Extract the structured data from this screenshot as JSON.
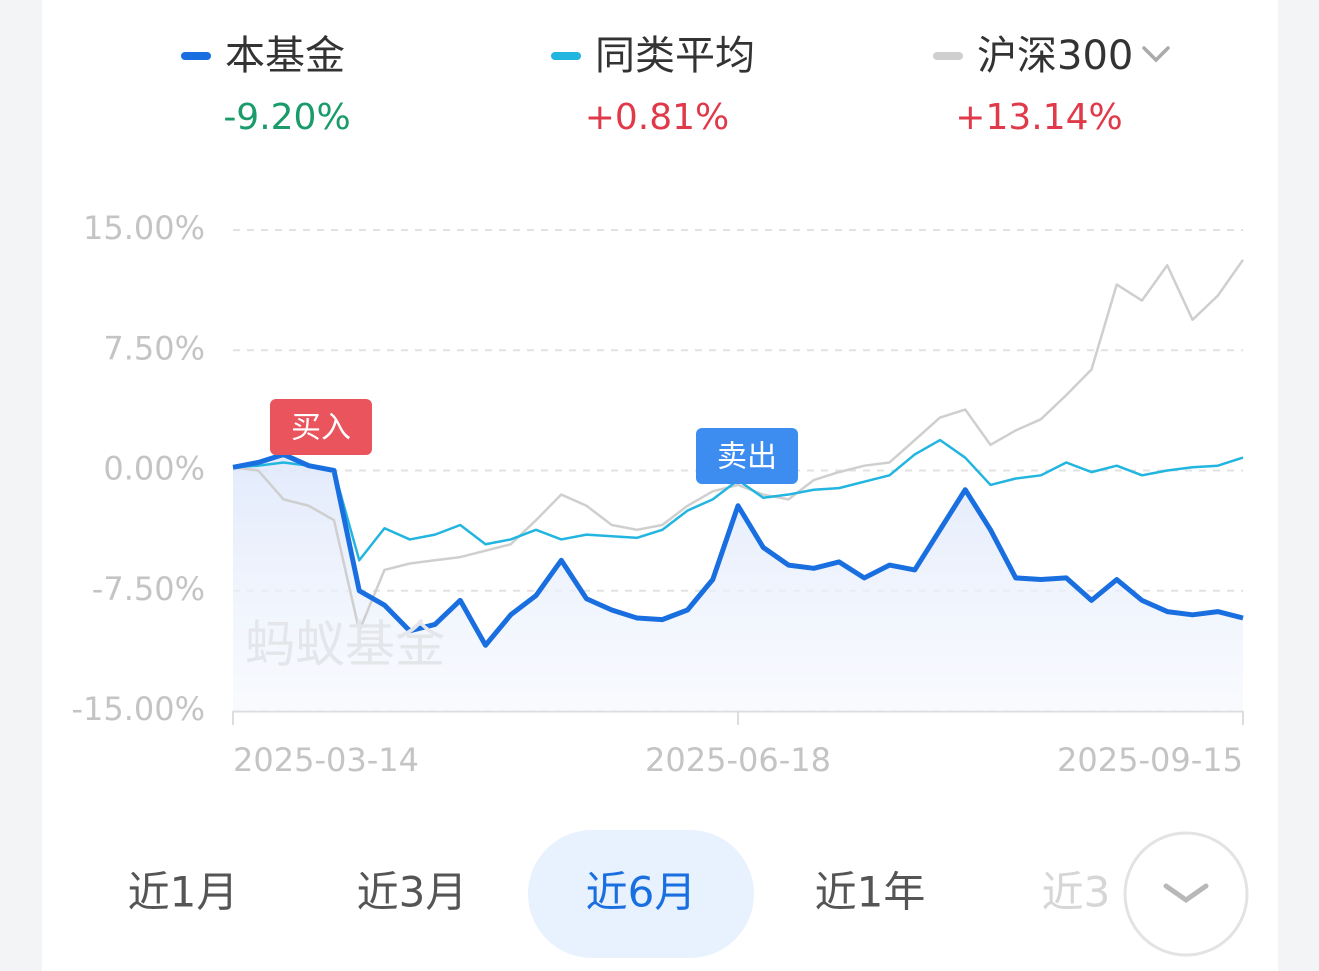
{
  "chart_data": {
    "type": "line",
    "categories": [
      "2025-03-14",
      null,
      null,
      null,
      null,
      null,
      null,
      null,
      null,
      null,
      null,
      null,
      null,
      null,
      null,
      null,
      null,
      null,
      null,
      null,
      "2025-06-18",
      null,
      null,
      null,
      null,
      null,
      null,
      null,
      null,
      null,
      null,
      null,
      null,
      null,
      null,
      null,
      null,
      null,
      null,
      null,
      "2025-09-15"
    ],
    "series": [
      {
        "name": "本基金",
        "change": "-9.20%",
        "color": "#1a6fe0",
        "values": [
          0.2,
          0.5,
          1.0,
          0.3,
          0,
          -7.5,
          -8.4,
          -10.0,
          -9.6,
          -8.1,
          -10.9,
          -9.0,
          -7.8,
          -5.6,
          -8.0,
          -8.7,
          -9.2,
          -9.3,
          -8.7,
          -6.8,
          -2.2,
          -4.8,
          -5.9,
          -6.1,
          -5.7,
          -6.7,
          -5.9,
          -6.2,
          -3.7,
          -1.2,
          -3.7,
          -6.7,
          -6.8,
          -6.7,
          -8.1,
          -6.8,
          -8.1,
          -8.8,
          -9.0,
          -8.8,
          -9.2
        ]
      },
      {
        "name": "同类平均",
        "change": "+0.81%",
        "color": "#22b5e0",
        "values": [
          0.2,
          0.3,
          0.5,
          0.3,
          0,
          -5.6,
          -3.6,
          -4.3,
          -4.0,
          -3.4,
          -4.6,
          -4.3,
          -3.7,
          -4.3,
          -4.0,
          -4.1,
          -4.2,
          -3.7,
          -2.5,
          -1.8,
          -0.6,
          -1.7,
          -1.5,
          -1.2,
          -1.1,
          -0.7,
          -0.3,
          1.0,
          1.9,
          0.8,
          -0.9,
          -0.5,
          -0.3,
          0.5,
          -0.1,
          0.3,
          -0.3,
          0,
          0.2,
          0.3,
          0.81
        ]
      },
      {
        "name": "沪深300",
        "change": "+13.14%",
        "color": "#cfcfcf",
        "values": [
          0.2,
          0,
          -1.8,
          -2.2,
          -3.1,
          -10.0,
          -6.2,
          -5.8,
          -5.6,
          -5.4,
          -5.0,
          -4.6,
          -3.1,
          -1.5,
          -2.2,
          -3.4,
          -3.7,
          -3.4,
          -2.2,
          -1.3,
          -0.9,
          -1.5,
          -1.8,
          -0.6,
          -0.1,
          0.3,
          0.5,
          1.9,
          3.3,
          3.8,
          1.6,
          2.5,
          3.2,
          4.7,
          6.3,
          11.6,
          10.6,
          12.8,
          9.4,
          10.9,
          13.14
        ]
      }
    ],
    "ylim": [
      -15,
      15
    ],
    "yticks": [
      {
        "value": 15,
        "label": "15.00%"
      },
      {
        "value": 7.5,
        "label": "7.50%"
      },
      {
        "value": 0,
        "label": "0.00%"
      },
      {
        "value": -7.5,
        "label": "-7.50%"
      },
      {
        "value": -15,
        "label": "-15.00%"
      }
    ],
    "grid": true,
    "annotations": [
      "买入",
      "卖出"
    ],
    "watermark": "蚂蚁基金"
  },
  "period_tabs": {
    "items": [
      "近1月",
      "近3月",
      "近6月",
      "近1年",
      "近3"
    ],
    "selected": 2
  }
}
